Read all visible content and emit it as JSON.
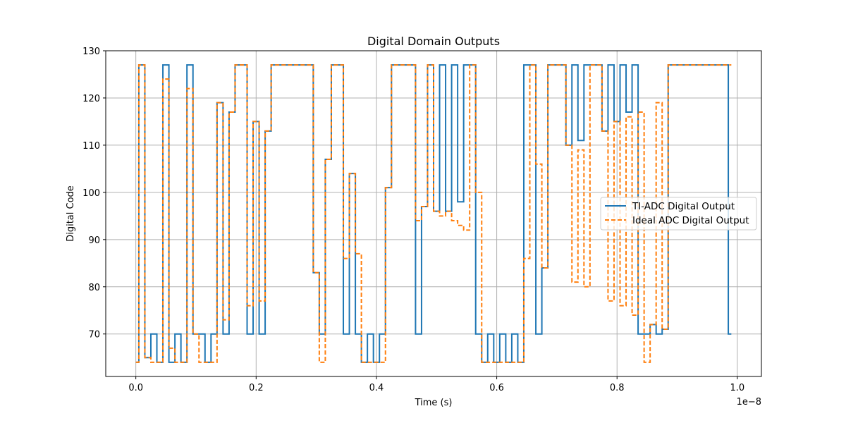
{
  "chart_data": {
    "type": "line",
    "title": "Digital Domain Outputs",
    "xlabel": "Time (s)",
    "ylabel": "Digital Code",
    "x_offset_text": "1e−8",
    "xlim": [
      -0.05,
      1.04
    ],
    "ylim": [
      61,
      130
    ],
    "xticks": [
      0.0,
      0.2,
      0.4,
      0.6,
      0.8,
      1.0
    ],
    "xtick_labels": [
      "0.0",
      "0.2",
      "0.4",
      "0.6",
      "0.8",
      "1.0"
    ],
    "yticks": [
      70,
      80,
      90,
      100,
      110,
      120,
      130
    ],
    "ytick_labels": [
      "70",
      "80",
      "90",
      "100",
      "110",
      "120",
      "130"
    ],
    "grid": true,
    "legend_position": "center-right",
    "step_width": 0.01,
    "x": [
      0.0,
      0.01,
      0.02,
      0.03,
      0.04,
      0.05,
      0.06,
      0.07,
      0.08,
      0.09,
      0.1,
      0.11,
      0.12,
      0.13,
      0.14,
      0.15,
      0.16,
      0.17,
      0.18,
      0.19,
      0.2,
      0.21,
      0.22,
      0.23,
      0.24,
      0.25,
      0.26,
      0.27,
      0.28,
      0.29,
      0.3,
      0.31,
      0.32,
      0.33,
      0.34,
      0.35,
      0.36,
      0.37,
      0.38,
      0.39,
      0.4,
      0.41,
      0.42,
      0.43,
      0.44,
      0.45,
      0.46,
      0.47,
      0.48,
      0.49,
      0.5,
      0.51,
      0.52,
      0.53,
      0.54,
      0.55,
      0.56,
      0.57,
      0.58,
      0.59,
      0.6,
      0.61,
      0.62,
      0.63,
      0.64,
      0.65,
      0.66,
      0.67,
      0.68,
      0.69,
      0.7,
      0.71,
      0.72,
      0.73,
      0.74,
      0.75,
      0.76,
      0.77,
      0.78,
      0.79,
      0.8,
      0.81,
      0.82,
      0.83,
      0.84,
      0.85,
      0.86,
      0.87,
      0.88,
      0.89,
      0.9,
      0.91,
      0.92,
      0.93,
      0.94,
      0.95,
      0.96,
      0.97,
      0.98,
      0.99
    ],
    "series": [
      {
        "name": "TI-ADC Digital Output",
        "color": "#1f77b4",
        "dash": "solid",
        "values": [
          64,
          127,
          65,
          70,
          64,
          127,
          64,
          70,
          64,
          127,
          70,
          70,
          64,
          70,
          119,
          70,
          117,
          127,
          127,
          70,
          115,
          70,
          113,
          127,
          127,
          127,
          127,
          127,
          127,
          127,
          83,
          70,
          107,
          127,
          127,
          70,
          104,
          70,
          64,
          70,
          64,
          70,
          101,
          127,
          127,
          127,
          127,
          70,
          97,
          127,
          96,
          127,
          96,
          127,
          98,
          127,
          127,
          70,
          64,
          70,
          64,
          70,
          64,
          70,
          64,
          127,
          127,
          70,
          84,
          127,
          127,
          127,
          110,
          127,
          111,
          127,
          127,
          127,
          113,
          127,
          115,
          127,
          117,
          127,
          70,
          70,
          72,
          70,
          71,
          127,
          127,
          127,
          127,
          127,
          127,
          127,
          127,
          127,
          127,
          70
        ]
      },
      {
        "name": "Ideal ADC Digital Output",
        "color": "#ff7f0e",
        "dash": "dashed",
        "values": [
          64,
          127,
          65,
          64,
          64,
          124,
          67,
          64,
          64,
          122,
          70,
          64,
          64,
          64,
          119,
          73,
          117,
          127,
          127,
          76,
          115,
          77,
          113,
          127,
          127,
          127,
          127,
          127,
          127,
          127,
          83,
          64,
          107,
          127,
          127,
          86,
          104,
          87,
          64,
          64,
          64,
          64,
          101,
          127,
          127,
          127,
          127,
          94,
          97,
          127,
          96,
          95,
          96,
          94,
          93,
          92,
          127,
          100,
          64,
          64,
          64,
          64,
          64,
          64,
          64,
          86,
          127,
          106,
          84,
          127,
          127,
          127,
          110,
          81,
          109,
          80,
          127,
          127,
          113,
          77,
          115,
          76,
          116,
          74,
          117,
          64,
          72,
          119,
          71,
          127,
          127,
          127,
          127,
          127,
          127,
          127,
          127,
          127,
          127,
          127
        ]
      }
    ]
  }
}
